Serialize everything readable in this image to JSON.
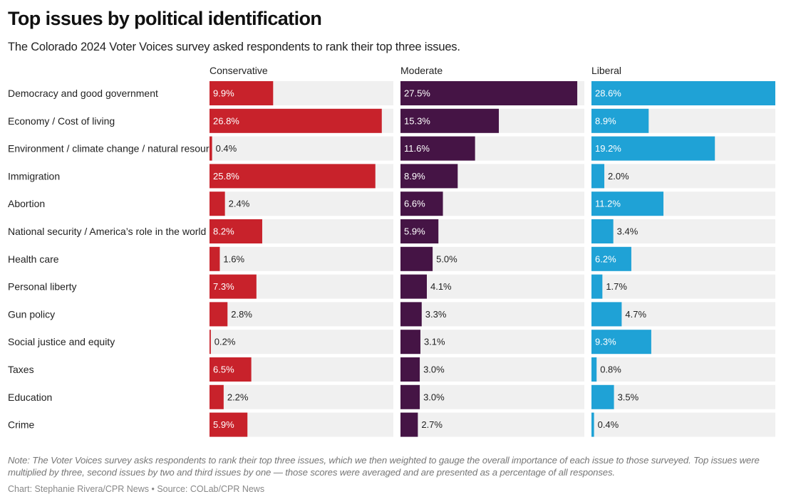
{
  "title": "Top issues by political identification",
  "subtitle": "The Colorado 2024 Voter Voices survey asked respondents to rank their top three issues.",
  "note": "Note: The Voter Voices survey asks respondents to rank their top three issues, which we then weighted to gauge the overall importance of each issue to those surveyed. Top issues were multiplied by three, second issues by two and third issues by one — those scores were averaged and are presented as a percentage of all responses.",
  "credit": "Chart: Stephanie Rivera/CPR News • Source: COLab/CPR News",
  "chart_data": {
    "type": "bar",
    "orientation": "horizontal",
    "layout": "small-multiples",
    "value_unit": "%",
    "xlim": [
      0,
      28.6
    ],
    "grid": false,
    "categories": [
      "Democracy and good government",
      "Economy / Cost of living",
      "Environment / climate change / natural resources",
      "Immigration",
      "Abortion",
      "National security / America’s role in the world",
      "Health care",
      "Personal liberty",
      "Gun policy",
      "Social justice and equity",
      "Taxes",
      "Education",
      "Crime"
    ],
    "series": [
      {
        "name": "Conservative",
        "color": "#c8222b",
        "values": [
          9.9,
          26.8,
          0.4,
          25.8,
          2.4,
          8.2,
          1.6,
          7.3,
          2.8,
          0.2,
          6.5,
          2.2,
          5.9
        ]
      },
      {
        "name": "Moderate",
        "color": "#451445",
        "values": [
          27.5,
          15.3,
          11.6,
          8.9,
          6.6,
          5.9,
          5.0,
          4.1,
          3.3,
          3.1,
          3.0,
          3.0,
          2.7
        ]
      },
      {
        "name": "Liberal",
        "color": "#1fa2d6",
        "values": [
          28.6,
          8.9,
          19.2,
          2.0,
          11.2,
          3.4,
          6.2,
          1.7,
          4.7,
          9.3,
          0.8,
          3.5,
          0.4
        ]
      }
    ]
  }
}
